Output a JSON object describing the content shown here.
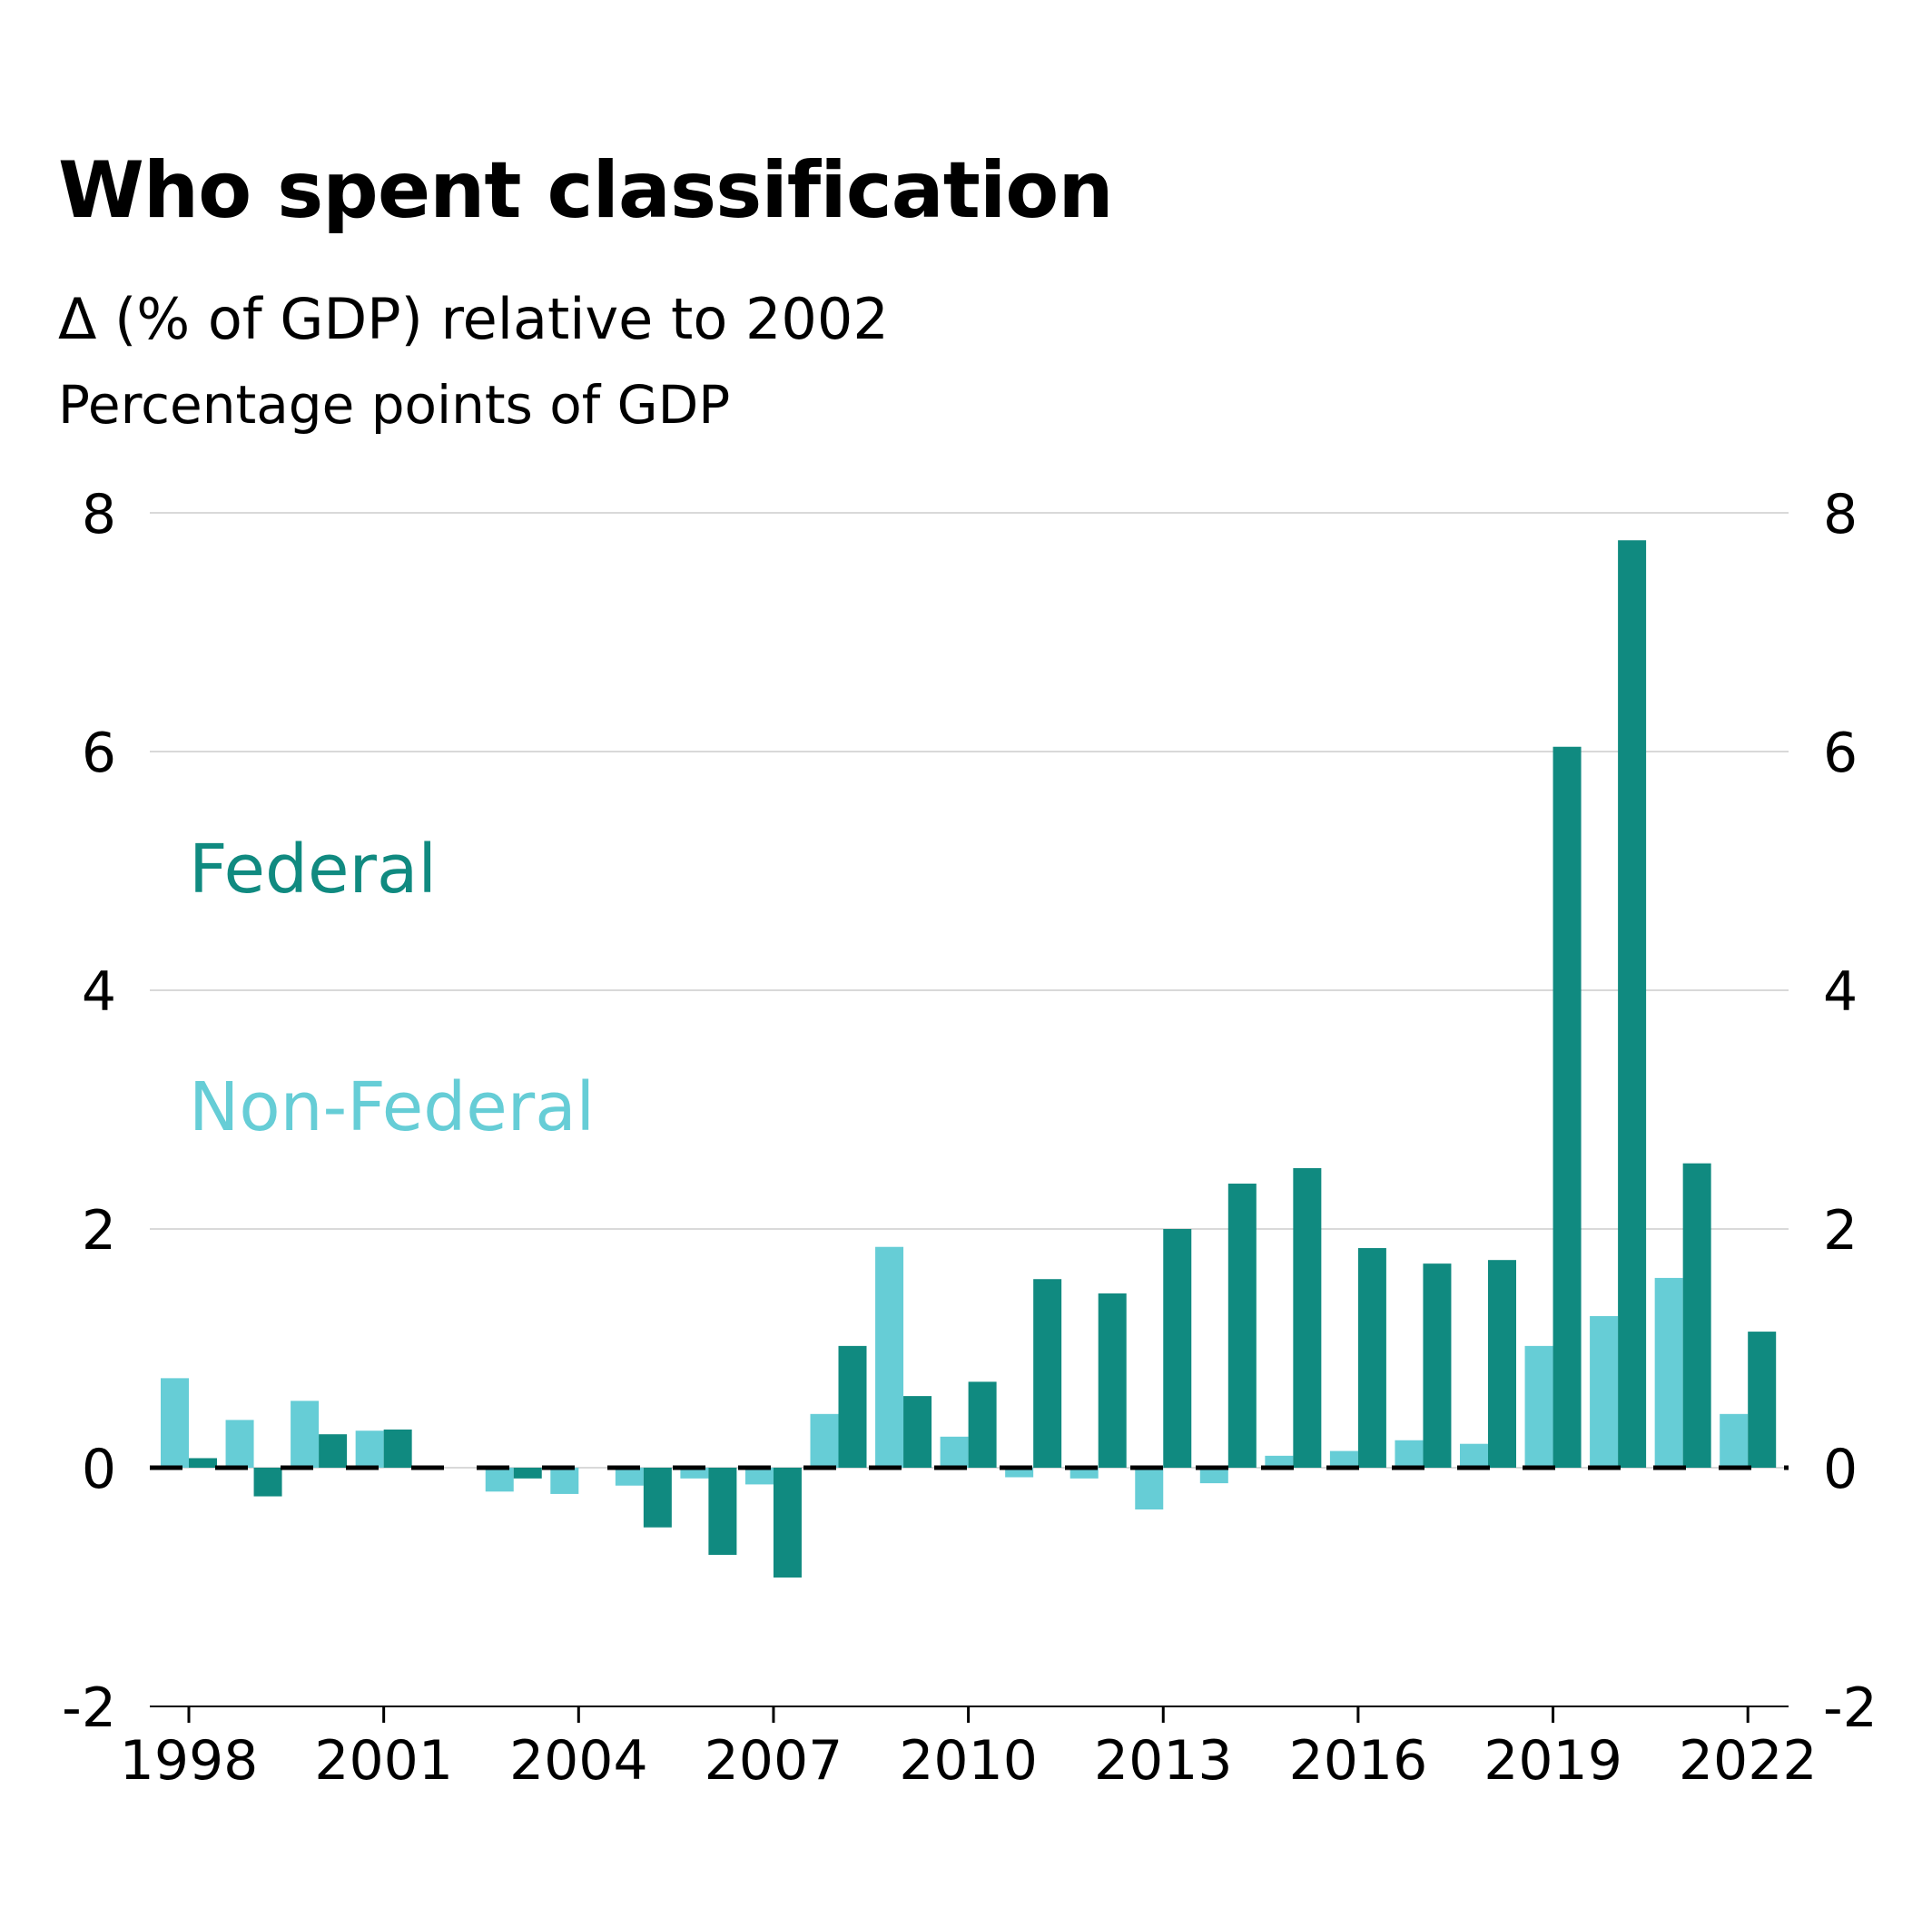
{
  "chart_data": {
    "type": "bar",
    "title": "Who spent classification",
    "subtitle": "Δ (% of GDP) relative to 2002",
    "ylabel": "Percentage points of GDP",
    "xlabel": "",
    "ylim": [
      -2,
      8
    ],
    "yticks": [
      "8",
      "6",
      "4",
      "2",
      "0",
      "-2"
    ],
    "ytick_values": [
      8,
      6,
      4,
      2,
      0,
      -2
    ],
    "xticks": [
      "1998",
      "2001",
      "2004",
      "2007",
      "2010",
      "2013",
      "2016",
      "2019",
      "2022"
    ],
    "xtick_values": [
      1998,
      2001,
      2004,
      2007,
      2010,
      2013,
      2016,
      2019,
      2022
    ],
    "categories": [
      1998,
      1999,
      2000,
      2001,
      2002,
      2003,
      2004,
      2005,
      2006,
      2007,
      2008,
      2009,
      2010,
      2011,
      2012,
      2013,
      2014,
      2015,
      2016,
      2017,
      2018,
      2019,
      2020,
      2021,
      2022
    ],
    "series": [
      {
        "name": "Non-Federal",
        "color": "#66cdd6",
        "values": [
          0.75,
          0.4,
          0.56,
          0.31,
          0,
          -0.2,
          -0.22,
          -0.15,
          -0.09,
          -0.14,
          0.45,
          1.85,
          0.26,
          -0.08,
          -0.09,
          -0.35,
          -0.13,
          0.1,
          0.14,
          0.23,
          0.2,
          1.02,
          1.27,
          1.59,
          0.45
        ]
      },
      {
        "name": "Federal",
        "color": "#108a80",
        "values": [
          0.08,
          -0.24,
          0.28,
          0.32,
          0,
          -0.09,
          0,
          -0.5,
          -0.73,
          -0.92,
          1.02,
          0.6,
          0.72,
          1.58,
          1.46,
          2.0,
          2.38,
          2.51,
          1.84,
          1.71,
          1.74,
          6.04,
          7.77,
          2.55,
          1.14
        ]
      }
    ],
    "legend_position": "inline, upper-left of plot",
    "baseline": {
      "style": "dashed",
      "color": "#000000"
    },
    "grid": true,
    "grid_color": "#d9d9d9"
  }
}
